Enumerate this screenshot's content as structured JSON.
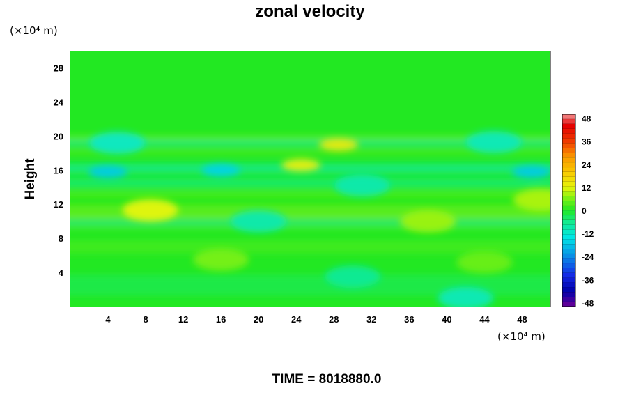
{
  "chart_data": {
    "type": "heatmap",
    "title": "zonal velocity",
    "xlabel": "",
    "ylabel": "Height",
    "x_unit": "(×10⁴ m)",
    "y_unit": "(×10⁴ m)",
    "xlim": [
      0,
      51
    ],
    "ylim": [
      0,
      30
    ],
    "x_ticks": [
      4,
      8,
      12,
      16,
      20,
      24,
      28,
      32,
      36,
      40,
      44,
      48
    ],
    "y_ticks": [
      4,
      8,
      12,
      16,
      20,
      24,
      28
    ],
    "colorbar": {
      "range": [
        -50,
        50
      ],
      "ticks": [
        48,
        36,
        24,
        12,
        0,
        -12,
        -24,
        -36,
        -48
      ]
    },
    "background_value": 0,
    "features": [
      {
        "x": 28.5,
        "y": 19.0,
        "value": 14
      },
      {
        "x": 24.5,
        "y": 16.6,
        "value": 13
      },
      {
        "x": 8.5,
        "y": 11.3,
        "value": 12
      },
      {
        "x": 50.0,
        "y": 12.5,
        "value": 9
      },
      {
        "x": 38.0,
        "y": 10.0,
        "value": 8
      },
      {
        "x": 16.0,
        "y": 5.5,
        "value": 6
      },
      {
        "x": 44.0,
        "y": 5.2,
        "value": 5
      },
      {
        "x": 4.0,
        "y": 15.8,
        "value": -17
      },
      {
        "x": 16.0,
        "y": 16.0,
        "value": -16
      },
      {
        "x": 49.0,
        "y": 15.8,
        "value": -17
      },
      {
        "x": 5.0,
        "y": 19.2,
        "value": -11
      },
      {
        "x": 45.0,
        "y": 19.3,
        "value": -10
      },
      {
        "x": 31.0,
        "y": 14.2,
        "value": -9
      },
      {
        "x": 20.0,
        "y": 10.0,
        "value": -9
      },
      {
        "x": 42.0,
        "y": 1.0,
        "value": -10
      },
      {
        "x": 30.0,
        "y": 3.5,
        "value": -7
      }
    ],
    "footer": "TIME = 8018880.0"
  }
}
